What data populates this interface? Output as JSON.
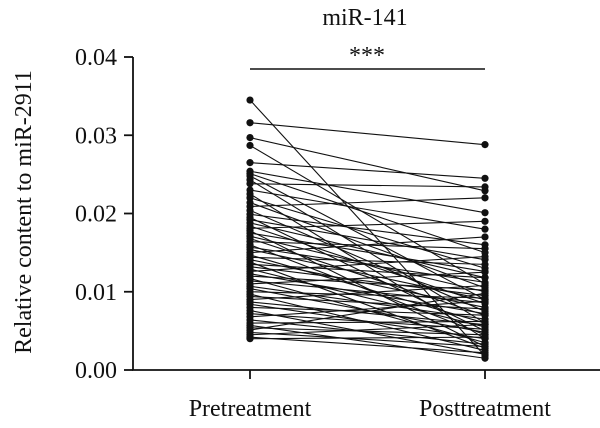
{
  "chart_data": {
    "type": "line",
    "title": "miR-141",
    "xlabel": "",
    "ylabel": "Relative content to miR-2911",
    "categories": [
      "Pretreatment",
      "Posttreatment"
    ],
    "ylim": [
      0,
      0.04
    ],
    "yticks": [
      "0.00",
      "0.01",
      "0.02",
      "0.03",
      "0.04"
    ],
    "significance": "***",
    "grid": false,
    "legend": "none",
    "line_color": "#111111",
    "pairs": [
      [
        0.0345,
        0.0018
      ],
      [
        0.0316,
        0.0288
      ],
      [
        0.0297,
        0.0229
      ],
      [
        0.0287,
        0.011
      ],
      [
        0.0265,
        0.0245
      ],
      [
        0.0254,
        0.0201
      ],
      [
        0.0251,
        0.015
      ],
      [
        0.0248,
        0.009
      ],
      [
        0.0243,
        0.006
      ],
      [
        0.0238,
        0.0234
      ],
      [
        0.023,
        0.018
      ],
      [
        0.0225,
        0.004
      ],
      [
        0.022,
        0.013
      ],
      [
        0.0214,
        0.0105
      ],
      [
        0.0209,
        0.022
      ],
      [
        0.0204,
        0.0075
      ],
      [
        0.0199,
        0.016
      ],
      [
        0.0195,
        0.005
      ],
      [
        0.0192,
        0.0141
      ],
      [
        0.0188,
        0.0118
      ],
      [
        0.0184,
        0.0085
      ],
      [
        0.0181,
        0.019
      ],
      [
        0.0178,
        0.003
      ],
      [
        0.0175,
        0.0126
      ],
      [
        0.0171,
        0.01
      ],
      [
        0.0168,
        0.007
      ],
      [
        0.0164,
        0.0155
      ],
      [
        0.016,
        0.0045
      ],
      [
        0.0157,
        0.0112
      ],
      [
        0.0154,
        0.009
      ],
      [
        0.015,
        0.017
      ],
      [
        0.0147,
        0.006
      ],
      [
        0.0144,
        0.0135
      ],
      [
        0.0141,
        0.008
      ],
      [
        0.0138,
        0.0028
      ],
      [
        0.0135,
        0.0118
      ],
      [
        0.0132,
        0.0095
      ],
      [
        0.0129,
        0.0055
      ],
      [
        0.0126,
        0.0145
      ],
      [
        0.0123,
        0.0072
      ],
      [
        0.012,
        0.0102
      ],
      [
        0.0117,
        0.0035
      ],
      [
        0.0114,
        0.0086
      ],
      [
        0.011,
        0.0125
      ],
      [
        0.0107,
        0.0065
      ],
      [
        0.0104,
        0.0048
      ],
      [
        0.01,
        0.0092
      ],
      [
        0.0097,
        0.0025
      ],
      [
        0.0094,
        0.0078
      ],
      [
        0.009,
        0.0108
      ],
      [
        0.0087,
        0.0058
      ],
      [
        0.0084,
        0.004
      ],
      [
        0.008,
        0.007
      ],
      [
        0.0076,
        0.002
      ],
      [
        0.0072,
        0.0052
      ],
      [
        0.0068,
        0.0088
      ],
      [
        0.0064,
        0.0033
      ],
      [
        0.006,
        0.0062
      ],
      [
        0.0057,
        0.0015
      ],
      [
        0.0054,
        0.0045
      ],
      [
        0.0051,
        0.0098
      ],
      [
        0.0048,
        0.003
      ],
      [
        0.0045,
        0.0058
      ],
      [
        0.0042,
        0.0022
      ],
      [
        0.004,
        0.0042
      ]
    ]
  }
}
